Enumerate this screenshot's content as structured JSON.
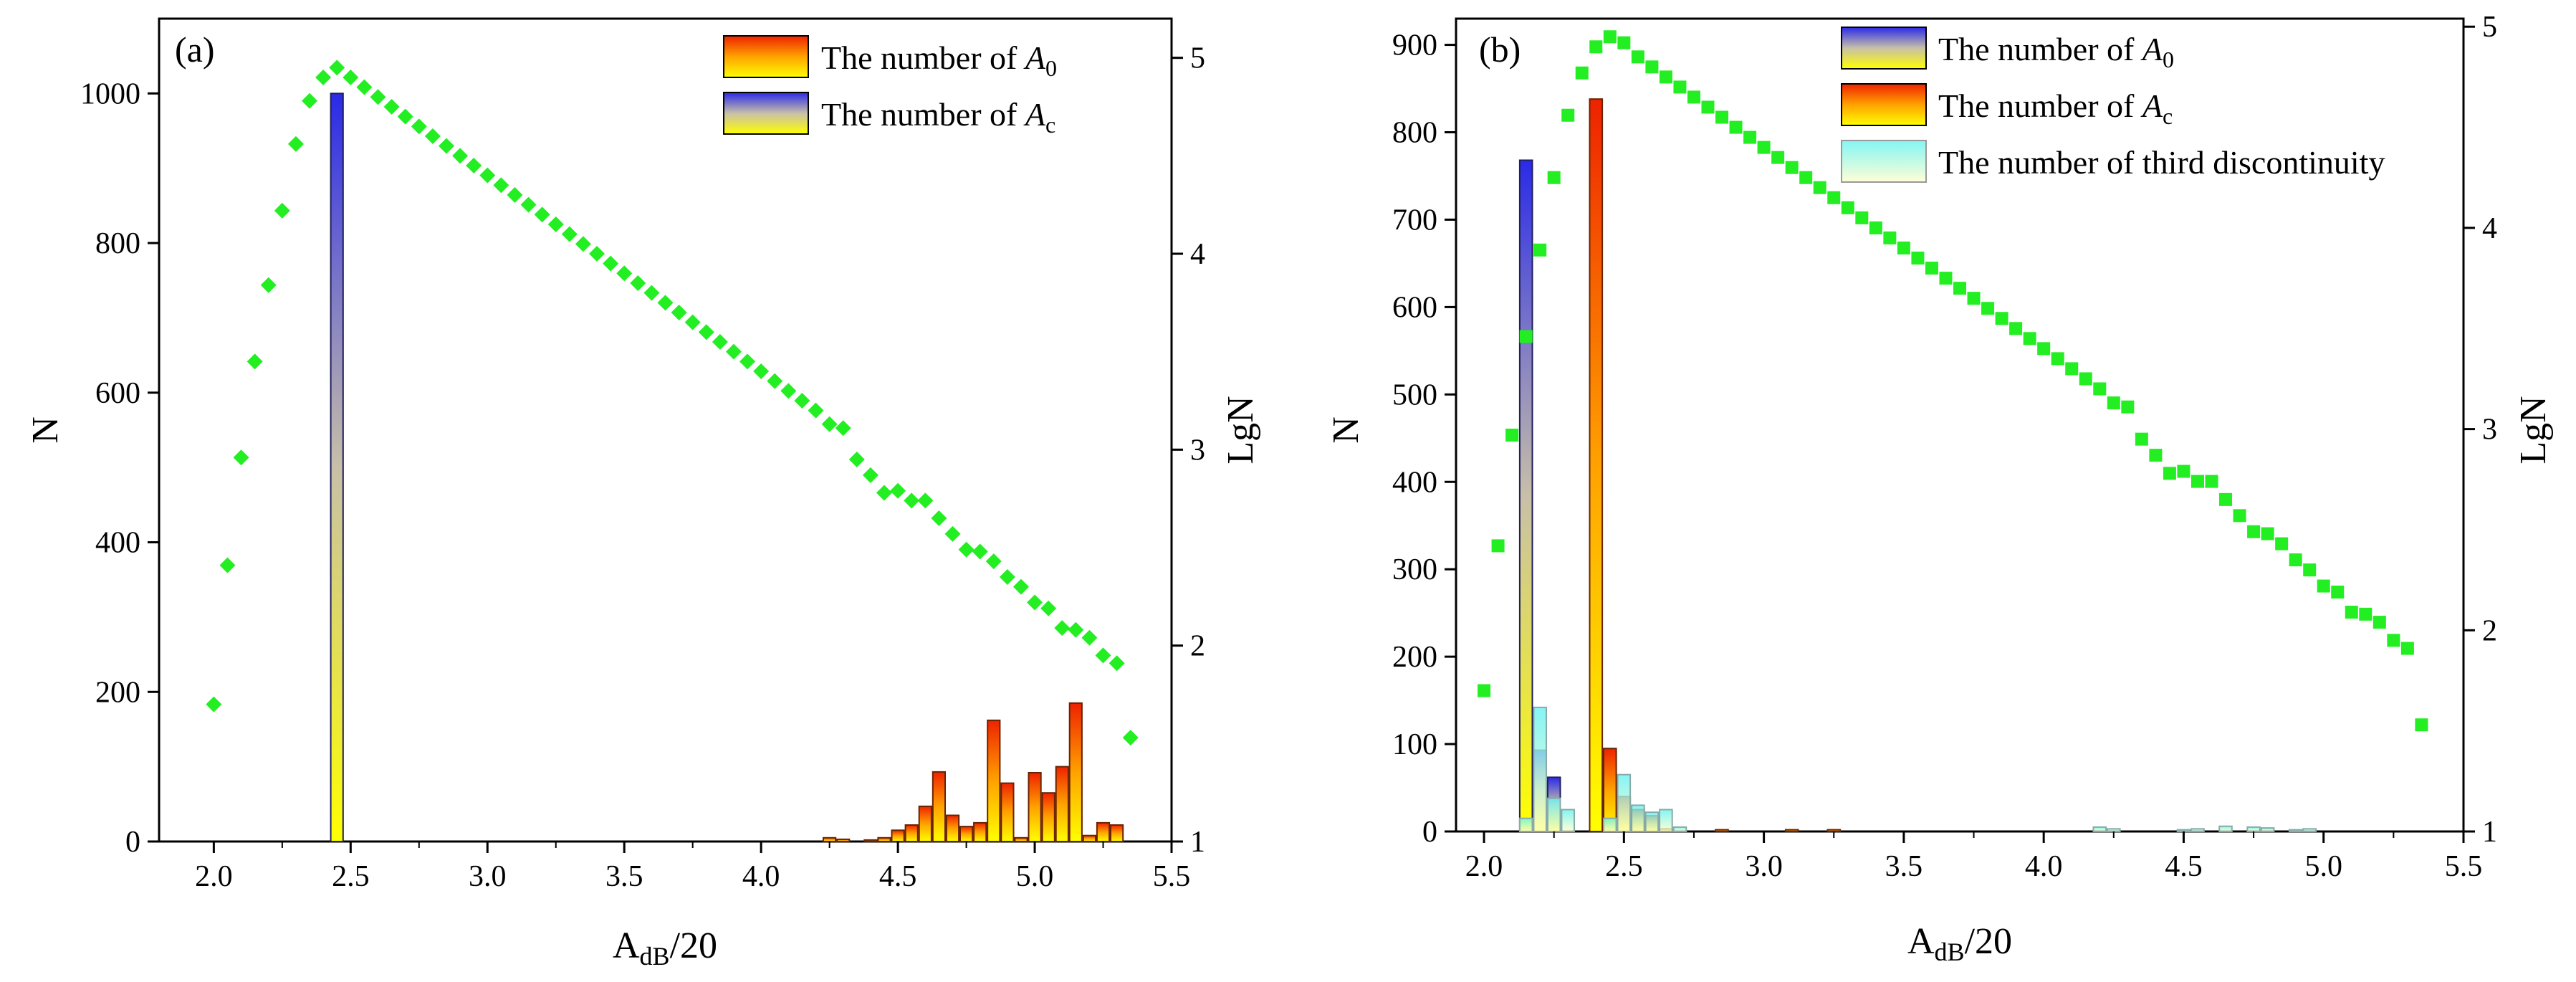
{
  "chart_data": [
    {
      "panel_label": "(a)",
      "type": "bar",
      "title": "",
      "xlabel": "A",
      "xlabel_sub": "dB",
      "xlabel_tail": "/20",
      "ylabel": "N",
      "y2label": "LgN",
      "xlim": [
        1.8,
        5.5
      ],
      "ylim": [
        0,
        1100
      ],
      "y2lim": [
        1,
        5.2
      ],
      "x_ticks": [
        "2.0",
        "2.5",
        "3.0",
        "3.5",
        "4.0",
        "4.5",
        "5.0",
        "5.5"
      ],
      "y_ticks": [
        "0",
        "200",
        "400",
        "600",
        "800",
        "1000"
      ],
      "y2_ticks": [
        "1",
        "2",
        "3",
        "4",
        "5"
      ],
      "grid": false,
      "legend_position": "top-right",
      "series": [
        {
          "name": "The number of A0",
          "legend_main": "The number of ",
          "legend_var": "A",
          "legend_sub": "0",
          "style": "warm",
          "bar_width": 0.045,
          "x": [
            4.25,
            4.3,
            4.4,
            4.45,
            4.5,
            4.55,
            4.6,
            4.65,
            4.7,
            4.75,
            4.8,
            4.85,
            4.9,
            4.95,
            5.0,
            5.05,
            5.1,
            5.15,
            5.2,
            5.25,
            5.3
          ],
          "values": [
            5,
            3,
            2,
            5,
            15,
            22,
            47,
            93,
            35,
            20,
            25,
            162,
            78,
            5,
            92,
            65,
            100,
            185,
            8,
            25,
            22
          ]
        },
        {
          "name": "The number of Ac",
          "legend_main": "The number of ",
          "legend_var": "A",
          "legend_sub": "c",
          "style": "cool",
          "bar_width": 0.045,
          "x": [
            2.45
          ],
          "values": [
            1000
          ]
        },
        {
          "name": "LgN",
          "type": "scatter",
          "axis": "right",
          "marker": "diamond",
          "color": "#22ee22",
          "x": [
            2.0,
            2.05,
            2.1,
            2.15,
            2.2,
            2.25,
            2.3,
            2.35,
            2.4,
            2.45,
            2.5,
            2.55,
            2.6,
            2.65,
            2.7,
            2.75,
            2.8,
            2.85,
            2.9,
            2.95,
            3.0,
            3.05,
            3.1,
            3.15,
            3.2,
            3.25,
            3.3,
            3.35,
            3.4,
            3.45,
            3.5,
            3.55,
            3.6,
            3.65,
            3.7,
            3.75,
            3.8,
            3.85,
            3.9,
            3.95,
            4.0,
            4.05,
            4.1,
            4.15,
            4.2,
            4.25,
            4.3,
            4.35,
            4.4,
            4.45,
            4.5,
            4.55,
            4.6,
            4.65,
            4.7,
            4.75,
            4.8,
            4.85,
            4.9,
            4.95,
            5.0,
            5.05,
            5.1,
            5.15,
            5.2,
            5.25,
            5.3,
            5.35
          ],
          "values": [
            1.7,
            2.41,
            2.96,
            3.45,
            3.84,
            4.22,
            4.56,
            4.78,
            4.9,
            4.95,
            4.9,
            4.85,
            4.8,
            4.75,
            4.7,
            4.65,
            4.6,
            4.55,
            4.5,
            4.45,
            4.4,
            4.35,
            4.3,
            4.25,
            4.2,
            4.15,
            4.1,
            4.05,
            4.0,
            3.95,
            3.9,
            3.85,
            3.8,
            3.75,
            3.7,
            3.65,
            3.6,
            3.55,
            3.5,
            3.45,
            3.4,
            3.35,
            3.3,
            3.25,
            3.2,
            3.13,
            3.11,
            2.95,
            2.87,
            2.78,
            2.79,
            2.74,
            2.74,
            2.65,
            2.57,
            2.49,
            2.48,
            2.43,
            2.35,
            2.3,
            2.22,
            2.19,
            2.09,
            2.08,
            2.04,
            1.95,
            1.91,
            1.53
          ]
        }
      ]
    },
    {
      "panel_label": "(b)",
      "type": "bar",
      "title": "",
      "xlabel": "A",
      "xlabel_sub": "dB",
      "xlabel_tail": "/20",
      "ylabel": "N",
      "y2label": "LgN",
      "xlim": [
        1.9,
        5.5
      ],
      "ylim": [
        0,
        930
      ],
      "y2lim": [
        1,
        5.04
      ],
      "x_ticks": [
        "2.0",
        "2.5",
        "3.0",
        "3.5",
        "4.0",
        "4.5",
        "5.0",
        "5.5"
      ],
      "y_ticks": [
        "0",
        "100",
        "200",
        "300",
        "400",
        "500",
        "600",
        "700",
        "800",
        "900"
      ],
      "y2_ticks": [
        "1",
        "2",
        "3",
        "4",
        "5"
      ],
      "grid": false,
      "legend_position": "top-right",
      "series": [
        {
          "name": "The number of A0",
          "legend_main": "The number of ",
          "legend_var": "A",
          "legend_sub": "0",
          "style": "cool",
          "bar_width": 0.045,
          "x": [
            2.15,
            2.2,
            2.25
          ],
          "values": [
            768,
            93,
            62
          ]
        },
        {
          "name": "The number of Ac",
          "legend_main": "The number of ",
          "legend_var": "A",
          "legend_sub": "c",
          "style": "warm",
          "bar_width": 0.045,
          "x": [
            2.4,
            2.45,
            2.5,
            2.55,
            2.6,
            2.65,
            2.85,
            3.1,
            3.25
          ],
          "values": [
            838,
            95,
            40,
            25,
            18,
            3,
            2,
            2,
            2
          ]
        },
        {
          "name": "The number of third discontinuity",
          "legend_main": "The number of third discontinuity",
          "legend_var": "",
          "legend_sub": "",
          "style": "cyan",
          "bar_width": 0.045,
          "x": [
            2.15,
            2.2,
            2.25,
            2.3,
            2.45,
            2.5,
            2.55,
            2.6,
            2.65,
            2.7,
            4.2,
            4.25,
            4.5,
            4.55,
            4.65,
            4.75,
            4.8,
            4.9,
            4.95
          ],
          "values": [
            15,
            142,
            38,
            25,
            15,
            65,
            30,
            22,
            25,
            5,
            5,
            3,
            2,
            3,
            6,
            5,
            4,
            2,
            3
          ]
        },
        {
          "name": "LgN",
          "type": "scatter",
          "axis": "right",
          "marker": "square",
          "color": "#22ee22",
          "x": [
            2.0,
            2.05,
            2.1,
            2.15,
            2.2,
            2.25,
            2.3,
            2.35,
            2.4,
            2.45,
            2.5,
            2.55,
            2.6,
            2.65,
            2.7,
            2.75,
            2.8,
            2.85,
            2.9,
            2.95,
            3.0,
            3.05,
            3.1,
            3.15,
            3.2,
            3.25,
            3.3,
            3.35,
            3.4,
            3.45,
            3.5,
            3.55,
            3.6,
            3.65,
            3.7,
            3.75,
            3.8,
            3.85,
            3.9,
            3.95,
            4.0,
            4.05,
            4.1,
            4.15,
            4.2,
            4.25,
            4.3,
            4.35,
            4.4,
            4.45,
            4.5,
            4.55,
            4.6,
            4.65,
            4.7,
            4.75,
            4.8,
            4.85,
            4.9,
            4.95,
            5.0,
            5.05,
            5.1,
            5.15,
            5.2,
            5.25,
            5.3,
            5.35
          ],
          "values": [
            1.7,
            2.42,
            2.97,
            3.46,
            3.89,
            4.25,
            4.56,
            4.77,
            4.9,
            4.95,
            4.92,
            4.85,
            4.8,
            4.75,
            4.7,
            4.65,
            4.6,
            4.55,
            4.5,
            4.45,
            4.4,
            4.35,
            4.3,
            4.25,
            4.2,
            4.15,
            4.1,
            4.05,
            4.0,
            3.95,
            3.9,
            3.85,
            3.8,
            3.75,
            3.7,
            3.65,
            3.6,
            3.55,
            3.5,
            3.45,
            3.4,
            3.35,
            3.3,
            3.25,
            3.2,
            3.13,
            3.11,
            2.95,
            2.87,
            2.78,
            2.79,
            2.74,
            2.74,
            2.65,
            2.57,
            2.49,
            2.48,
            2.43,
            2.35,
            2.3,
            2.22,
            2.19,
            2.09,
            2.08,
            2.04,
            1.95,
            1.91,
            1.53
          ]
        }
      ]
    }
  ]
}
